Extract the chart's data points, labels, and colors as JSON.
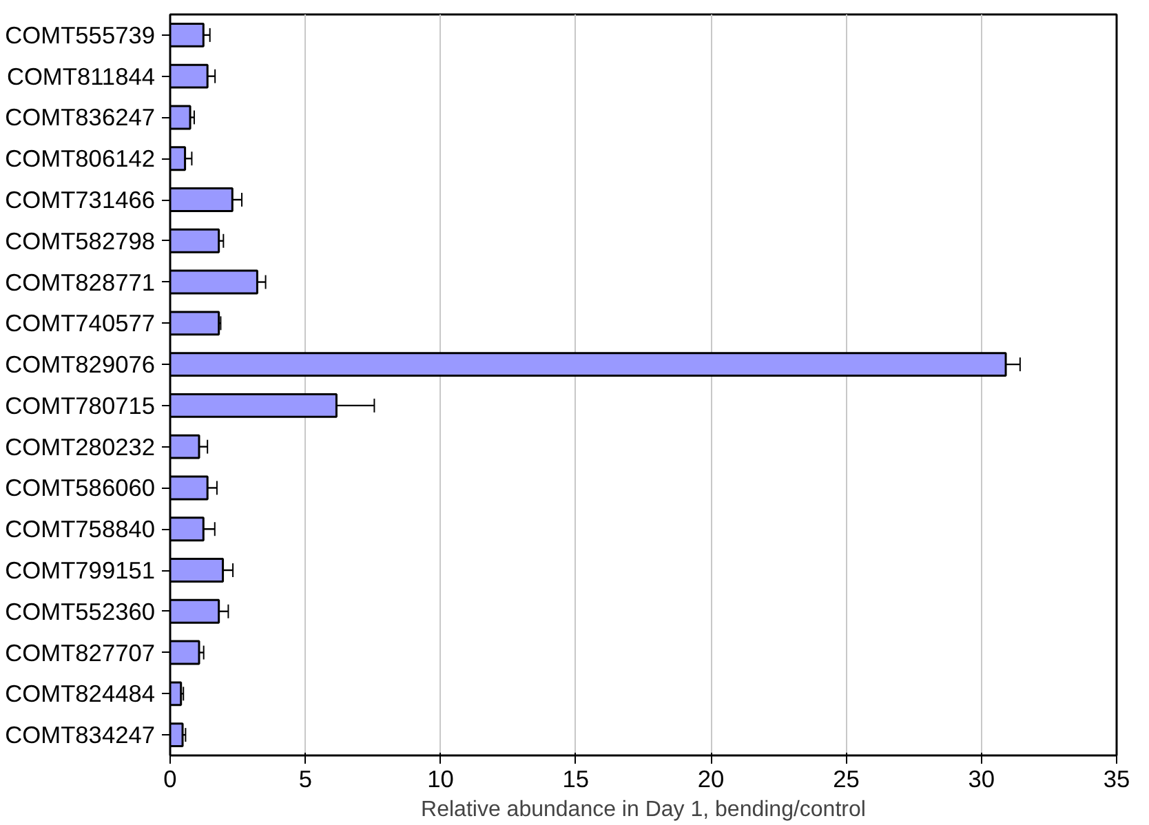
{
  "chart_data": {
    "type": "bar",
    "orientation": "horizontal",
    "xlabel": "Relative abundance in Day 1, bending/control",
    "categories": [
      "COMT555739",
      "COMT811844",
      "COMT836247",
      "COMT806142",
      "COMT731466",
      "COMT582798",
      "COMT828771",
      "COMT740577",
      "COMT829076",
      "COMT780715",
      "COMT280232",
      "COMT586060",
      "COMT758840",
      "COMT799151",
      "COMT552360",
      "COMT827707",
      "COMT824484",
      "COMT834247"
    ],
    "values": [
      1.23,
      1.38,
      0.74,
      0.55,
      2.3,
      1.8,
      3.22,
      1.8,
      30.9,
      6.15,
      1.07,
      1.38,
      1.23,
      1.95,
      1.8,
      1.07,
      0.4,
      0.46
    ],
    "errors": [
      0.24,
      0.28,
      0.15,
      0.25,
      0.35,
      0.17,
      0.31,
      0.07,
      0.53,
      1.4,
      0.31,
      0.35,
      0.42,
      0.37,
      0.35,
      0.17,
      0.09,
      0.11
    ],
    "color": "#9999ff",
    "xlim": [
      0,
      35
    ],
    "xticks": [
      0,
      5,
      10,
      15,
      20,
      25,
      30,
      35
    ],
    "grid": "x"
  }
}
